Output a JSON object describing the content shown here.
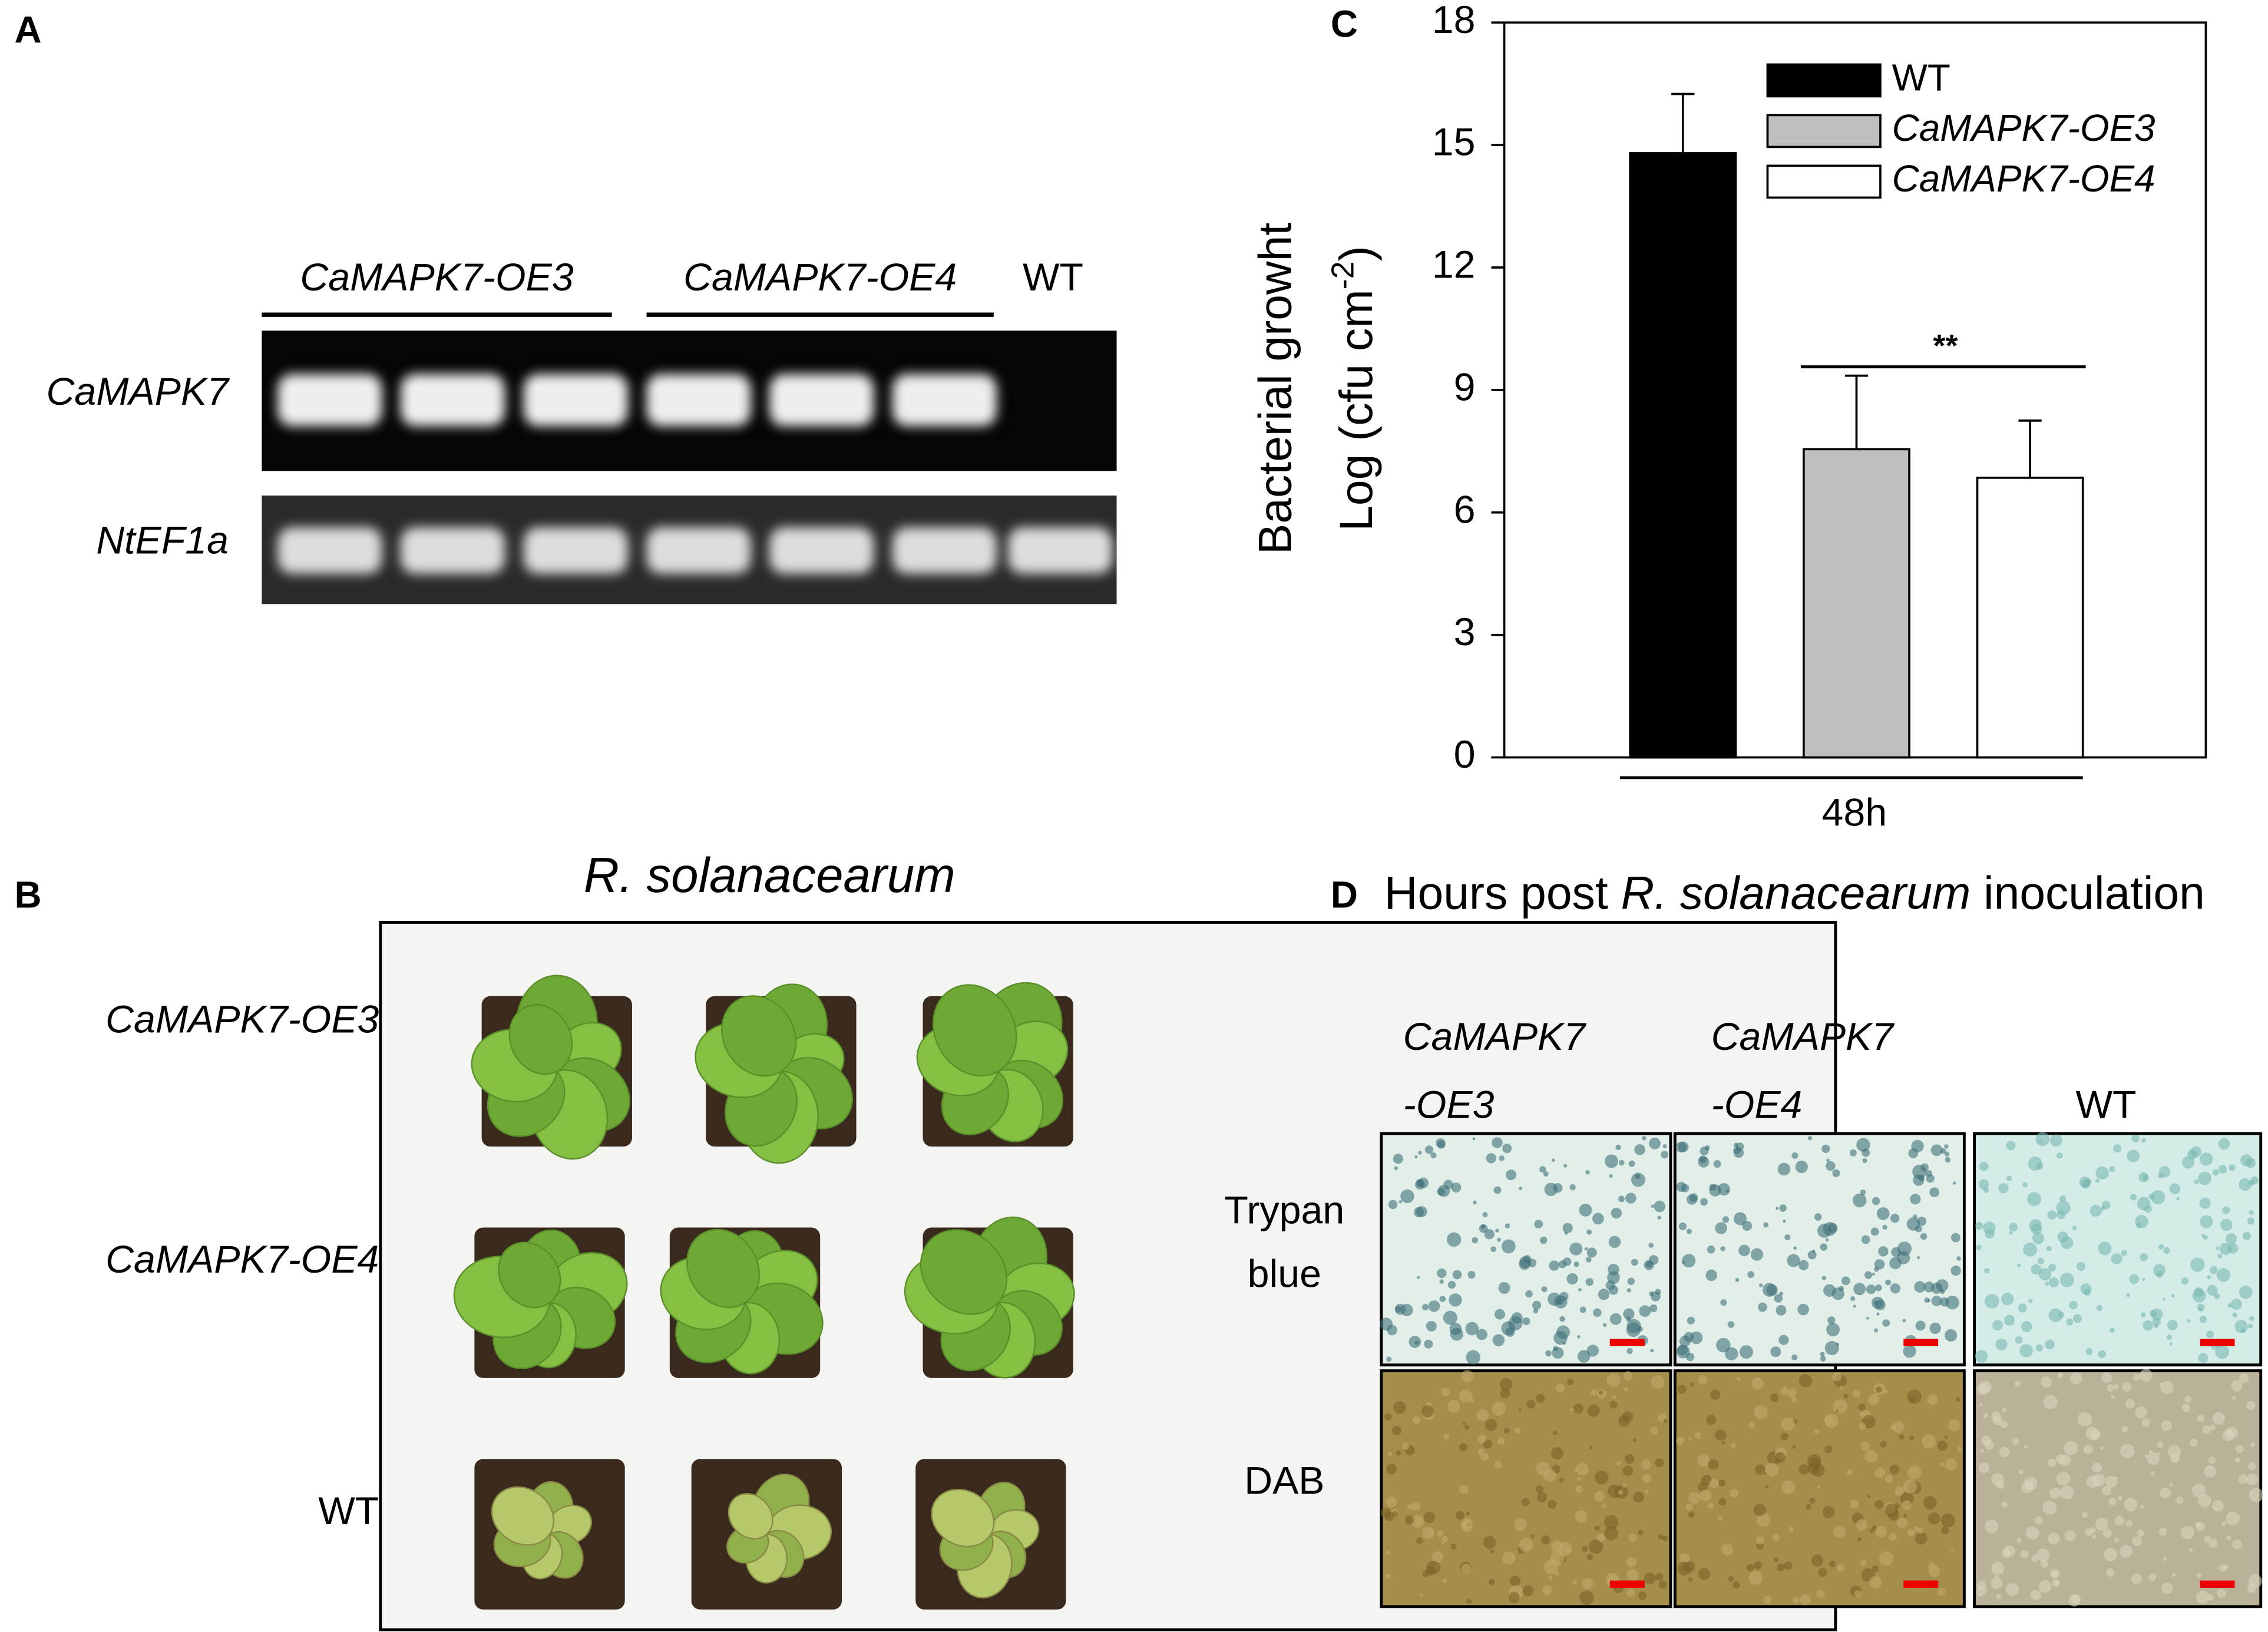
{
  "panel_labels": [
    "A",
    "B",
    "C",
    "D"
  ],
  "gel": {
    "group_labels": [
      "CaMAPK7-OE3",
      "CaMAPK7-OE4",
      "WT"
    ],
    "row_labels": [
      "CaMAPK7",
      "NtEF1a"
    ]
  },
  "plants": {
    "title": "R. solanacearum",
    "row_labels": [
      "CaMAPK7-OE3",
      "CaMAPK7-OE4",
      "WT"
    ]
  },
  "chart_data": {
    "type": "bar",
    "ylabel": "Bacterial growht",
    "ylabel2": {
      "text": "Log (cfu cm",
      "superscript": "-2",
      "end": ")"
    },
    "categories": [
      "48h"
    ],
    "series": [
      {
        "name": "WT",
        "color": "#000000",
        "values": [
          14.8
        ],
        "errors": [
          1.45
        ]
      },
      {
        "name": "CaMAPK7-OE3",
        "color": "#bfbfbf",
        "values": [
          7.55
        ],
        "errors": [
          1.8
        ]
      },
      {
        "name": "CaMAPK7-OE4",
        "color": "#ffffff",
        "values": [
          6.85
        ],
        "errors": [
          1.4
        ]
      }
    ],
    "ylim": [
      0,
      18
    ],
    "yticks": [
      0,
      3,
      6,
      9,
      12,
      15,
      18
    ],
    "annotation": "**"
  },
  "staining": {
    "title": [
      "Hours post ",
      "R. solanacearum",
      " inoculation"
    ],
    "column_labels": [
      [
        "CaMAPK7",
        "-OE3"
      ],
      [
        "CaMAPK7",
        "-OE4"
      ],
      [
        "WT"
      ]
    ],
    "row_labels": [
      [
        "Trypan",
        "blue"
      ],
      [
        "DAB"
      ]
    ]
  }
}
